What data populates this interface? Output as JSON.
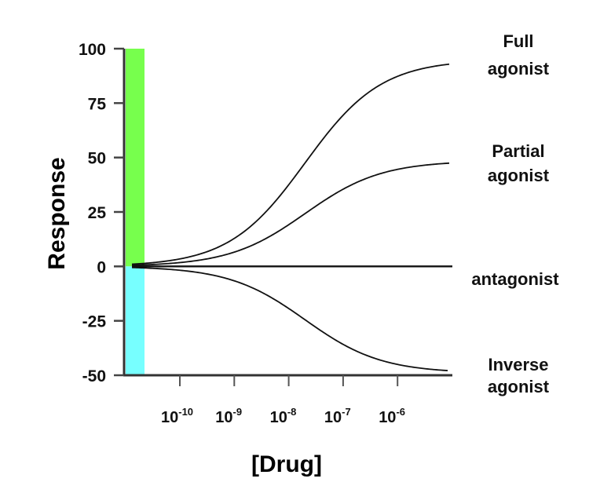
{
  "chart_data": {
    "type": "line",
    "title": "",
    "xlabel": "[Drug]",
    "ylabel": "Response",
    "x_scale": "log",
    "xlim_log10": [
      -11.03,
      -5.03
    ],
    "ylim": [
      -50,
      100
    ],
    "yticks": [
      100,
      75,
      50,
      25,
      0,
      -25,
      -50
    ],
    "ytick_labels": [
      "100",
      "75",
      "50",
      "25",
      "0",
      "-25",
      "-50"
    ],
    "xticks_log10": [
      -10,
      -9,
      -8,
      -7,
      -6
    ],
    "xtick_labels": [
      {
        "base": "10",
        "exp": "-10"
      },
      {
        "base": "10",
        "exp": "-9"
      },
      {
        "base": "10",
        "exp": "-8"
      },
      {
        "base": "10",
        "exp": "-7"
      },
      {
        "base": "10",
        "exp": "-6"
      }
    ],
    "grid": false,
    "legend": "curve labels at right end",
    "series": [
      {
        "name": "Full agonist",
        "label_lines": [
          "Full",
          "agonist"
        ],
        "max_response": 95,
        "log_ec50": -7.7,
        "hill": 0.62
      },
      {
        "name": "Partial agonist",
        "label_lines": [
          "Partial",
          "agonist"
        ],
        "max_response": 48.5,
        "log_ec50": -7.7,
        "hill": 0.62
      },
      {
        "name": "antagonist",
        "label_lines": [
          "antagonist"
        ],
        "max_response": 0,
        "log_ec50": -7.7,
        "hill": 0.62
      },
      {
        "name": "Inverse agonist",
        "label_lines": [
          "Inverse",
          "agonist"
        ],
        "max_response": -49,
        "log_ec50": -7.7,
        "hill": 0.62
      }
    ],
    "bands": [
      {
        "name": "positive-response-band",
        "from": 0,
        "to": 100,
        "color": "#77ff4d"
      },
      {
        "name": "negative-response-band",
        "from": -50,
        "to": 0,
        "color": "#77ffff"
      }
    ],
    "colors": {
      "axis": "#333333",
      "curve": "#111111"
    }
  }
}
